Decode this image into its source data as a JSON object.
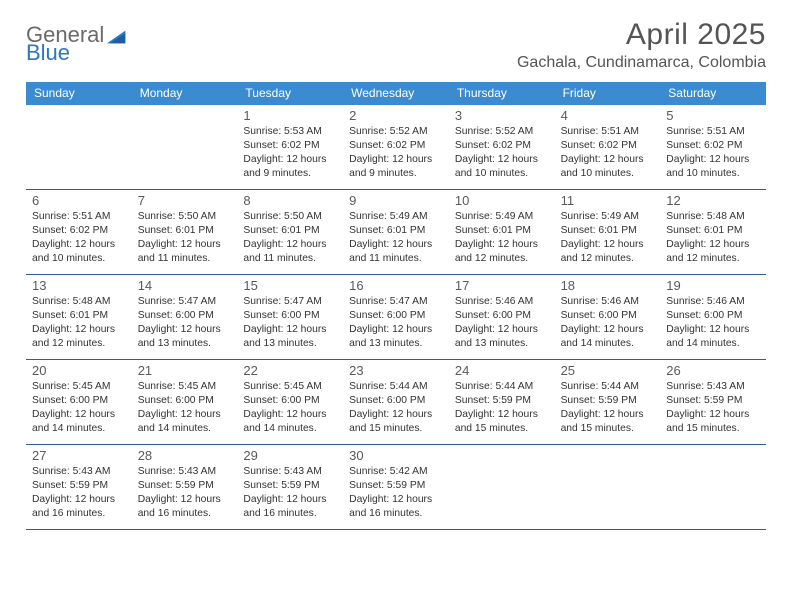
{
  "logo": {
    "text1": "General",
    "text2": "Blue"
  },
  "title": "April 2025",
  "location": "Gachala, Cundinamarca, Colombia",
  "colors": {
    "header_bg": "#3b8bd0",
    "week_border": "#2b5f8f",
    "text_gray": "#555555",
    "body_text": "#333333",
    "logo_gray": "#6a6a6a",
    "logo_blue": "#2b78c2"
  },
  "days_of_week": [
    "Sunday",
    "Monday",
    "Tuesday",
    "Wednesday",
    "Thursday",
    "Friday",
    "Saturday"
  ],
  "weeks": [
    [
      null,
      null,
      {
        "n": "1",
        "sr": "Sunrise: 5:53 AM",
        "ss": "Sunset: 6:02 PM",
        "d1": "Daylight: 12 hours",
        "d2": "and 9 minutes."
      },
      {
        "n": "2",
        "sr": "Sunrise: 5:52 AM",
        "ss": "Sunset: 6:02 PM",
        "d1": "Daylight: 12 hours",
        "d2": "and 9 minutes."
      },
      {
        "n": "3",
        "sr": "Sunrise: 5:52 AM",
        "ss": "Sunset: 6:02 PM",
        "d1": "Daylight: 12 hours",
        "d2": "and 10 minutes."
      },
      {
        "n": "4",
        "sr": "Sunrise: 5:51 AM",
        "ss": "Sunset: 6:02 PM",
        "d1": "Daylight: 12 hours",
        "d2": "and 10 minutes."
      },
      {
        "n": "5",
        "sr": "Sunrise: 5:51 AM",
        "ss": "Sunset: 6:02 PM",
        "d1": "Daylight: 12 hours",
        "d2": "and 10 minutes."
      }
    ],
    [
      {
        "n": "6",
        "sr": "Sunrise: 5:51 AM",
        "ss": "Sunset: 6:02 PM",
        "d1": "Daylight: 12 hours",
        "d2": "and 10 minutes."
      },
      {
        "n": "7",
        "sr": "Sunrise: 5:50 AM",
        "ss": "Sunset: 6:01 PM",
        "d1": "Daylight: 12 hours",
        "d2": "and 11 minutes."
      },
      {
        "n": "8",
        "sr": "Sunrise: 5:50 AM",
        "ss": "Sunset: 6:01 PM",
        "d1": "Daylight: 12 hours",
        "d2": "and 11 minutes."
      },
      {
        "n": "9",
        "sr": "Sunrise: 5:49 AM",
        "ss": "Sunset: 6:01 PM",
        "d1": "Daylight: 12 hours",
        "d2": "and 11 minutes."
      },
      {
        "n": "10",
        "sr": "Sunrise: 5:49 AM",
        "ss": "Sunset: 6:01 PM",
        "d1": "Daylight: 12 hours",
        "d2": "and 12 minutes."
      },
      {
        "n": "11",
        "sr": "Sunrise: 5:49 AM",
        "ss": "Sunset: 6:01 PM",
        "d1": "Daylight: 12 hours",
        "d2": "and 12 minutes."
      },
      {
        "n": "12",
        "sr": "Sunrise: 5:48 AM",
        "ss": "Sunset: 6:01 PM",
        "d1": "Daylight: 12 hours",
        "d2": "and 12 minutes."
      }
    ],
    [
      {
        "n": "13",
        "sr": "Sunrise: 5:48 AM",
        "ss": "Sunset: 6:01 PM",
        "d1": "Daylight: 12 hours",
        "d2": "and 12 minutes."
      },
      {
        "n": "14",
        "sr": "Sunrise: 5:47 AM",
        "ss": "Sunset: 6:00 PM",
        "d1": "Daylight: 12 hours",
        "d2": "and 13 minutes."
      },
      {
        "n": "15",
        "sr": "Sunrise: 5:47 AM",
        "ss": "Sunset: 6:00 PM",
        "d1": "Daylight: 12 hours",
        "d2": "and 13 minutes."
      },
      {
        "n": "16",
        "sr": "Sunrise: 5:47 AM",
        "ss": "Sunset: 6:00 PM",
        "d1": "Daylight: 12 hours",
        "d2": "and 13 minutes."
      },
      {
        "n": "17",
        "sr": "Sunrise: 5:46 AM",
        "ss": "Sunset: 6:00 PM",
        "d1": "Daylight: 12 hours",
        "d2": "and 13 minutes."
      },
      {
        "n": "18",
        "sr": "Sunrise: 5:46 AM",
        "ss": "Sunset: 6:00 PM",
        "d1": "Daylight: 12 hours",
        "d2": "and 14 minutes."
      },
      {
        "n": "19",
        "sr": "Sunrise: 5:46 AM",
        "ss": "Sunset: 6:00 PM",
        "d1": "Daylight: 12 hours",
        "d2": "and 14 minutes."
      }
    ],
    [
      {
        "n": "20",
        "sr": "Sunrise: 5:45 AM",
        "ss": "Sunset: 6:00 PM",
        "d1": "Daylight: 12 hours",
        "d2": "and 14 minutes."
      },
      {
        "n": "21",
        "sr": "Sunrise: 5:45 AM",
        "ss": "Sunset: 6:00 PM",
        "d1": "Daylight: 12 hours",
        "d2": "and 14 minutes."
      },
      {
        "n": "22",
        "sr": "Sunrise: 5:45 AM",
        "ss": "Sunset: 6:00 PM",
        "d1": "Daylight: 12 hours",
        "d2": "and 14 minutes."
      },
      {
        "n": "23",
        "sr": "Sunrise: 5:44 AM",
        "ss": "Sunset: 6:00 PM",
        "d1": "Daylight: 12 hours",
        "d2": "and 15 minutes."
      },
      {
        "n": "24",
        "sr": "Sunrise: 5:44 AM",
        "ss": "Sunset: 5:59 PM",
        "d1": "Daylight: 12 hours",
        "d2": "and 15 minutes."
      },
      {
        "n": "25",
        "sr": "Sunrise: 5:44 AM",
        "ss": "Sunset: 5:59 PM",
        "d1": "Daylight: 12 hours",
        "d2": "and 15 minutes."
      },
      {
        "n": "26",
        "sr": "Sunrise: 5:43 AM",
        "ss": "Sunset: 5:59 PM",
        "d1": "Daylight: 12 hours",
        "d2": "and 15 minutes."
      }
    ],
    [
      {
        "n": "27",
        "sr": "Sunrise: 5:43 AM",
        "ss": "Sunset: 5:59 PM",
        "d1": "Daylight: 12 hours",
        "d2": "and 16 minutes."
      },
      {
        "n": "28",
        "sr": "Sunrise: 5:43 AM",
        "ss": "Sunset: 5:59 PM",
        "d1": "Daylight: 12 hours",
        "d2": "and 16 minutes."
      },
      {
        "n": "29",
        "sr": "Sunrise: 5:43 AM",
        "ss": "Sunset: 5:59 PM",
        "d1": "Daylight: 12 hours",
        "d2": "and 16 minutes."
      },
      {
        "n": "30",
        "sr": "Sunrise: 5:42 AM",
        "ss": "Sunset: 5:59 PM",
        "d1": "Daylight: 12 hours",
        "d2": "and 16 minutes."
      },
      null,
      null,
      null
    ]
  ]
}
